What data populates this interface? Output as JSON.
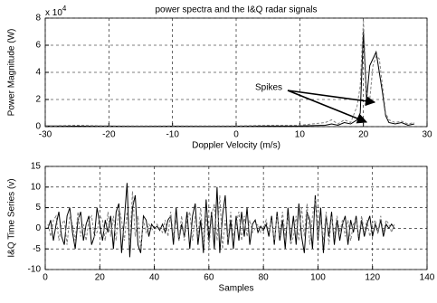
{
  "chart_data": [
    {
      "type": "line",
      "title": "power spectra and the I&Q radar signals",
      "y_label": "Power Magnitude (W)",
      "x_label": "Doppler Velocity (m/s)",
      "y_scale": {
        "base": "x 10",
        "exponent": "4"
      },
      "annotation": "Spikes",
      "xlim": [
        -30,
        30
      ],
      "xticks": [
        -30,
        -20,
        -10,
        0,
        10,
        20,
        30
      ],
      "ylim": [
        0,
        8
      ],
      "yticks": [
        0,
        2,
        4,
        6,
        8
      ],
      "grid": true,
      "x": [
        -30,
        -25,
        -20,
        -15,
        -10,
        -5,
        0,
        5,
        10,
        14,
        15,
        16,
        17,
        18,
        19,
        19.5,
        20,
        20.5,
        21,
        21.5,
        22,
        22.5,
        23,
        23.5,
        24,
        25,
        26,
        27,
        28
      ],
      "series": [
        {
          "color": "#000000",
          "linestyle": "solid",
          "values": [
            0.05,
            0.03,
            0.04,
            0.02,
            0.03,
            0.02,
            0.03,
            0.04,
            0.05,
            0.1,
            0.2,
            0.1,
            0.3,
            0.2,
            0.5,
            1,
            7,
            2,
            4.5,
            5,
            5.5,
            4,
            2.5,
            0.8,
            0.3,
            0.2,
            0.3,
            0.1,
            0.2
          ]
        },
        {
          "color": "#808080",
          "linestyle": "dashed",
          "values": [
            0.05,
            0.1,
            0.05,
            0.05,
            0.05,
            0.05,
            0.05,
            0.1,
            0.1,
            0.3,
            0.5,
            0.2,
            0.5,
            0.3,
            1.5,
            3,
            7.8,
            2.5,
            2,
            4.5,
            5.2,
            5,
            3,
            1,
            0.5,
            0.3,
            0.4,
            0.2,
            0.3
          ]
        }
      ]
    },
    {
      "type": "line",
      "y_label": "I&Q Time Series (v)",
      "x_label": "Samples",
      "xlim": [
        0,
        140
      ],
      "xticks": [
        0,
        20,
        40,
        60,
        80,
        100,
        120,
        140
      ],
      "ylim": [
        -10,
        15
      ],
      "yticks": [
        -10,
        -5,
        0,
        5,
        10,
        15
      ],
      "grid": true,
      "x": [
        1,
        2,
        3,
        4,
        5,
        6,
        7,
        8,
        9,
        10,
        11,
        12,
        13,
        14,
        15,
        16,
        17,
        18,
        19,
        20,
        21,
        22,
        23,
        24,
        25,
        26,
        27,
        28,
        29,
        30,
        31,
        32,
        33,
        34,
        35,
        36,
        37,
        38,
        39,
        40,
        41,
        42,
        43,
        44,
        45,
        46,
        47,
        48,
        49,
        50,
        51,
        52,
        53,
        54,
        55,
        56,
        57,
        58,
        59,
        60,
        61,
        62,
        63,
        64,
        65,
        66,
        67,
        68,
        69,
        70,
        71,
        72,
        73,
        74,
        75,
        76,
        77,
        78,
        79,
        80,
        81,
        82,
        83,
        84,
        85,
        86,
        87,
        88,
        89,
        90,
        91,
        92,
        93,
        94,
        95,
        96,
        97,
        98,
        99,
        100,
        101,
        102,
        103,
        104,
        105,
        106,
        107,
        108,
        109,
        110,
        111,
        112,
        113,
        114,
        115,
        116,
        117,
        118,
        119,
        120,
        121,
        122,
        123,
        124,
        125,
        126,
        127,
        128
      ],
      "series": [
        {
          "color": "#000000",
          "linestyle": "solid",
          "values": [
            0,
            2,
            -3,
            1,
            4,
            -2,
            -4,
            3,
            5,
            -1,
            -5,
            2,
            4,
            -3,
            1,
            3,
            -4,
            -2,
            5,
            1,
            -3,
            2,
            -1,
            3,
            -5,
            4,
            6,
            -6,
            2,
            11,
            -7,
            5,
            8,
            -4,
            -6,
            3,
            2,
            -2,
            1,
            0,
            0.5,
            -0.5,
            1,
            -1,
            2,
            3,
            -4,
            5,
            -3,
            1,
            -2,
            4,
            -5,
            3,
            6,
            -4,
            2,
            -6,
            7,
            -3,
            4,
            -5,
            10,
            -6,
            3,
            8,
            -4,
            2,
            -5,
            3,
            -3,
            4,
            -2,
            5,
            -4,
            1,
            2,
            -1,
            0.5,
            -0.5,
            1,
            -2,
            3,
            -4,
            4,
            -3,
            2,
            -5,
            5,
            -3,
            3,
            -4,
            6,
            -2,
            -6,
            4,
            2,
            -5,
            8,
            -3,
            5,
            -6,
            3,
            -2,
            4,
            -4,
            2,
            -3,
            1,
            3,
            -4,
            2,
            -1,
            3,
            -3,
            2,
            -2,
            1,
            3,
            -2,
            1,
            -1,
            2,
            -2,
            1,
            0,
            1,
            0
          ]
        },
        {
          "color": "#808080",
          "linestyle": "dashed",
          "values": [
            1,
            -2,
            2,
            3,
            -3,
            1,
            2,
            -4,
            3,
            1,
            -3,
            4,
            -2,
            1,
            -3,
            2,
            3,
            -2,
            -1,
            3,
            2,
            -3,
            4,
            -2,
            3,
            -3,
            5,
            2,
            -3,
            4,
            -4,
            9,
            -2,
            3,
            -5,
            2,
            -1,
            1,
            0,
            -1,
            1,
            0,
            -1,
            2,
            -2,
            4,
            -2,
            2,
            -3,
            3,
            -3,
            2,
            4,
            -3,
            3,
            -2,
            5,
            -4,
            3,
            -5,
            3,
            6,
            -3,
            8,
            -5,
            2,
            -3,
            4,
            -2,
            1,
            4,
            -3,
            3,
            -2,
            2,
            -1,
            0,
            1,
            -1,
            0,
            2,
            -1,
            2,
            -3,
            3,
            -2,
            4,
            -2,
            3,
            -4,
            -2,
            3,
            -3,
            5,
            -2,
            6,
            -4,
            3,
            7,
            -2,
            2,
            -3,
            4,
            -4,
            3,
            -2,
            3,
            -1,
            2,
            -2,
            2,
            -3,
            1,
            2,
            -2,
            3,
            -1,
            2,
            -2,
            1,
            2,
            -1,
            3,
            -1,
            2,
            1,
            -1,
            1
          ]
        }
      ]
    }
  ]
}
